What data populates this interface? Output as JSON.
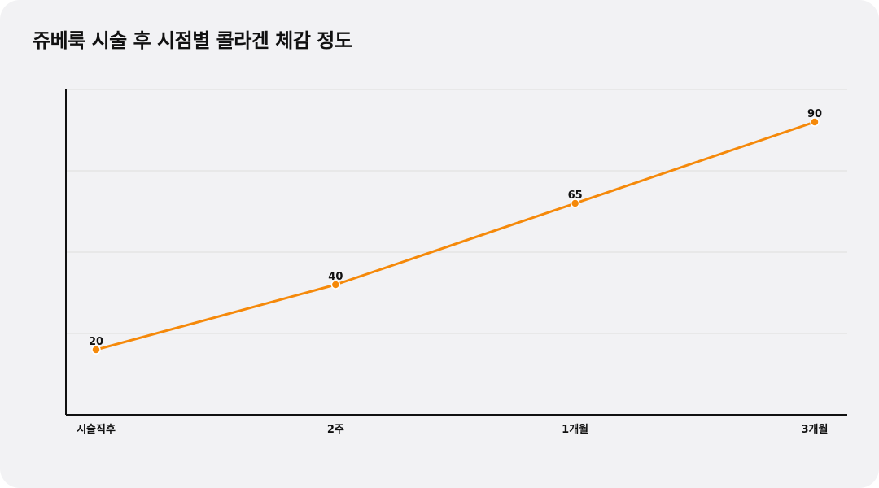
{
  "chart_data": {
    "type": "line",
    "title": "쥬베룩 시술 후 시점별 콜라겐 체감 정도",
    "xlabel": "",
    "ylabel": "",
    "categories": [
      "시술직후",
      "2주",
      "1개월",
      "3개월"
    ],
    "series": [
      {
        "values": [
          20,
          40,
          65,
          90
        ]
      }
    ],
    "ylim": [
      0,
      100
    ],
    "grid": true,
    "legend": "none",
    "y_tick_labels_shown": false,
    "data_labels": true
  },
  "colors": {
    "line": "#f5890a",
    "marker_stroke": "#ffffff",
    "gridline": "#dddddd",
    "axis": "#111111",
    "background": "#f2f2f4"
  }
}
